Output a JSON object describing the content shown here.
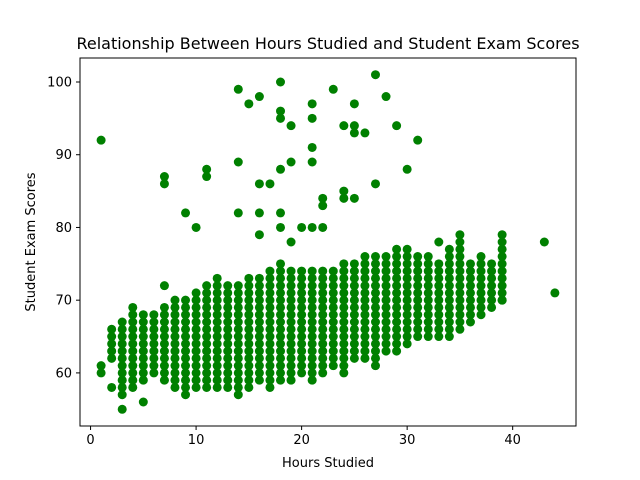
{
  "chart_data": {
    "type": "scatter",
    "title": "Relationship Between Hours Studied and Student Exam Scores",
    "xlabel": "Hours Studied",
    "ylabel": "Student Exam Scores",
    "xlim": [
      -1,
      46
    ],
    "ylim": [
      52.7,
      103.3
    ],
    "xticks": [
      0,
      10,
      20,
      30,
      40
    ],
    "yticks": [
      60,
      70,
      80,
      90,
      100
    ],
    "grid": false,
    "marker_color": "#008000",
    "series": [
      {
        "outliers": [
          [
            1,
            92
          ],
          [
            1,
            61
          ],
          [
            1,
            60
          ],
          [
            2,
            58
          ],
          [
            3,
            55
          ],
          [
            5,
            56
          ],
          [
            7,
            87
          ],
          [
            7,
            86
          ],
          [
            7,
            72
          ],
          [
            9,
            82
          ],
          [
            10,
            80
          ],
          [
            11,
            88
          ],
          [
            11,
            87
          ],
          [
            14,
            99
          ],
          [
            14,
            89
          ],
          [
            14,
            82
          ],
          [
            15,
            97
          ],
          [
            16,
            98
          ],
          [
            16,
            86
          ],
          [
            16,
            82
          ],
          [
            16,
            79
          ],
          [
            17,
            86
          ],
          [
            18,
            100
          ],
          [
            18,
            96
          ],
          [
            18,
            95
          ],
          [
            18,
            88
          ],
          [
            18,
            82
          ],
          [
            18,
            80
          ],
          [
            19,
            94
          ],
          [
            19,
            89
          ],
          [
            19,
            78
          ],
          [
            20,
            80
          ],
          [
            21,
            97
          ],
          [
            21,
            95
          ],
          [
            21,
            91
          ],
          [
            21,
            89
          ],
          [
            21,
            80
          ],
          [
            22,
            84
          ],
          [
            22,
            83
          ],
          [
            22,
            80
          ],
          [
            23,
            99
          ],
          [
            24,
            94
          ],
          [
            24,
            85
          ],
          [
            24,
            84
          ],
          [
            25,
            97
          ],
          [
            25,
            94
          ],
          [
            25,
            93
          ],
          [
            25,
            84
          ],
          [
            26,
            93
          ],
          [
            27,
            101
          ],
          [
            27,
            86
          ],
          [
            28,
            98
          ],
          [
            29,
            94
          ],
          [
            30,
            88
          ],
          [
            31,
            92
          ],
          [
            33,
            78
          ],
          [
            37,
            68
          ],
          [
            38,
            69
          ],
          [
            39,
            70
          ],
          [
            43,
            78
          ],
          [
            44,
            71
          ]
        ],
        "columns": [
          [
            2,
            62,
            66
          ],
          [
            3,
            57,
            67
          ],
          [
            4,
            58,
            69
          ],
          [
            5,
            59,
            68
          ],
          [
            6,
            60,
            68
          ],
          [
            7,
            59,
            69
          ],
          [
            8,
            58,
            70
          ],
          [
            9,
            57,
            70
          ],
          [
            10,
            58,
            71
          ],
          [
            11,
            58,
            72
          ],
          [
            12,
            58,
            73
          ],
          [
            13,
            58,
            72
          ],
          [
            14,
            57,
            72
          ],
          [
            15,
            58,
            73
          ],
          [
            16,
            59,
            73
          ],
          [
            17,
            58,
            74
          ],
          [
            18,
            59,
            75
          ],
          [
            19,
            59,
            74
          ],
          [
            20,
            60,
            74
          ],
          [
            21,
            59,
            74
          ],
          [
            22,
            60,
            74
          ],
          [
            23,
            61,
            74
          ],
          [
            24,
            60,
            75
          ],
          [
            25,
            62,
            75
          ],
          [
            26,
            62,
            76
          ],
          [
            27,
            61,
            76
          ],
          [
            28,
            63,
            76
          ],
          [
            29,
            63,
            77
          ],
          [
            30,
            64,
            77
          ],
          [
            31,
            65,
            76
          ],
          [
            32,
            65,
            76
          ],
          [
            33,
            65,
            75
          ],
          [
            34,
            65,
            77
          ],
          [
            35,
            66,
            79
          ],
          [
            36,
            67,
            75
          ],
          [
            37,
            69,
            76
          ],
          [
            38,
            70,
            75
          ],
          [
            39,
            70,
            79
          ]
        ]
      }
    ]
  }
}
